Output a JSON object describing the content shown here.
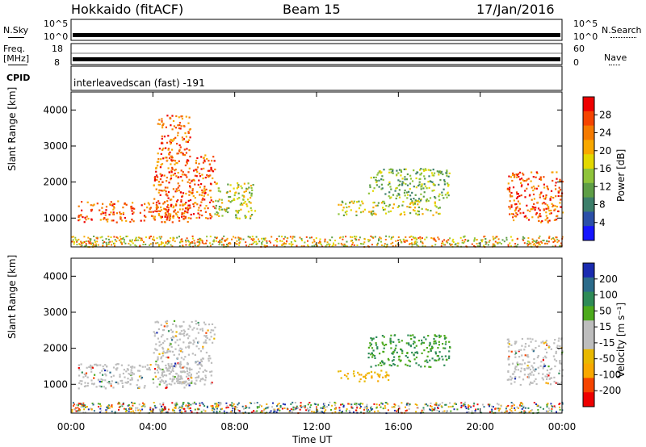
{
  "header": {
    "station": "Hokkaido (fitACF)",
    "beam": "Beam 15",
    "date": "17/Jan/2016"
  },
  "top_strip": {
    "left_label": "N.Sky",
    "left_ticks": [
      "10^5",
      "10^0"
    ],
    "right_label": "N.Search",
    "right_ticks": [
      "10^5",
      "10^0"
    ]
  },
  "freq_strip": {
    "left_label_1": "Freq.",
    "left_label_2": "[MHz]",
    "left_ticks": [
      "18",
      "8"
    ],
    "right_label": "Nave",
    "right_ticks": [
      "60",
      "0"
    ]
  },
  "cpid": {
    "label": "CPID",
    "value": "interleavedscan (fast) -191"
  },
  "colors": {
    "power_scale": [
      "#1515ff",
      "#2b4fa8",
      "#3d7f6b",
      "#5e9e46",
      "#8fc43a",
      "#e3d800",
      "#f8a800",
      "#f57a00",
      "#f54400",
      "#ee0000"
    ],
    "velocity_scale": [
      "#ee0000",
      "#f54400",
      "#f8a800",
      "#e8b800",
      "#bdbdbd",
      "#bdbdbd",
      "#4caa1c",
      "#2e8b57",
      "#2b6b8a",
      "#1a2bb0"
    ],
    "gray": "#bdbdbd"
  },
  "chart_data": [
    {
      "type": "heatmap",
      "title": "",
      "xlabel": "",
      "ylabel": "Slant Range [km]",
      "x_ticks": [
        "00:00",
        "04:00",
        "08:00",
        "12:00",
        "16:00",
        "20:00",
        "00:00"
      ],
      "y_ticks": [
        "1000",
        "2000",
        "3000",
        "4000"
      ],
      "ylim": [
        200,
        4500
      ],
      "colorbar": {
        "label": "Power [dB]",
        "ticks": [
          "4",
          "8",
          "12",
          "16",
          "20",
          "24",
          "28"
        ]
      },
      "regions": [
        {
          "t0": 0.3,
          "t1": 5.8,
          "r0": 900,
          "r1": 1500,
          "level": "high"
        },
        {
          "t0": 4.0,
          "t1": 7.0,
          "r0": 1000,
          "r1": 2800,
          "level": "high"
        },
        {
          "t0": 4.2,
          "t1": 5.8,
          "r0": 2800,
          "r1": 3900,
          "level": "high"
        },
        {
          "t0": 7.0,
          "t1": 9.0,
          "r0": 1000,
          "r1": 2000,
          "level": "mid"
        },
        {
          "t0": 13.0,
          "t1": 18.0,
          "r0": 1100,
          "r1": 1500,
          "level": "mid"
        },
        {
          "t0": 14.5,
          "t1": 18.5,
          "r0": 1500,
          "r1": 2400,
          "level": "low"
        },
        {
          "t0": 21.3,
          "t1": 24.0,
          "r0": 900,
          "r1": 2300,
          "level": "high"
        }
      ]
    },
    {
      "type": "heatmap",
      "title": "",
      "xlabel": "Time UT",
      "ylabel": "Slant Range [km]",
      "x_ticks": [
        "00:00",
        "04:00",
        "08:00",
        "12:00",
        "16:00",
        "20:00",
        "00:00"
      ],
      "y_ticks": [
        "1000",
        "2000",
        "3000",
        "4000"
      ],
      "ylim": [
        200,
        4500
      ],
      "colorbar": {
        "label": "Velocity [m s⁻¹]",
        "ticks": [
          "200",
          "100",
          "50",
          "15",
          "-15",
          "-50",
          "-100",
          "-200"
        ]
      },
      "regions": [
        {
          "t0": 0.3,
          "t1": 5.8,
          "r0": 900,
          "r1": 1600,
          "level": "gray"
        },
        {
          "t0": 4.0,
          "t1": 7.0,
          "r0": 1000,
          "r1": 2800,
          "level": "gray"
        },
        {
          "t0": 13.0,
          "t1": 15.5,
          "r0": 1100,
          "r1": 1400,
          "level": "neg"
        },
        {
          "t0": 14.5,
          "t1": 18.5,
          "r0": 1500,
          "r1": 2400,
          "level": "pos"
        },
        {
          "t0": 21.3,
          "t1": 24.0,
          "r0": 1000,
          "r1": 2300,
          "level": "gray"
        }
      ]
    }
  ]
}
